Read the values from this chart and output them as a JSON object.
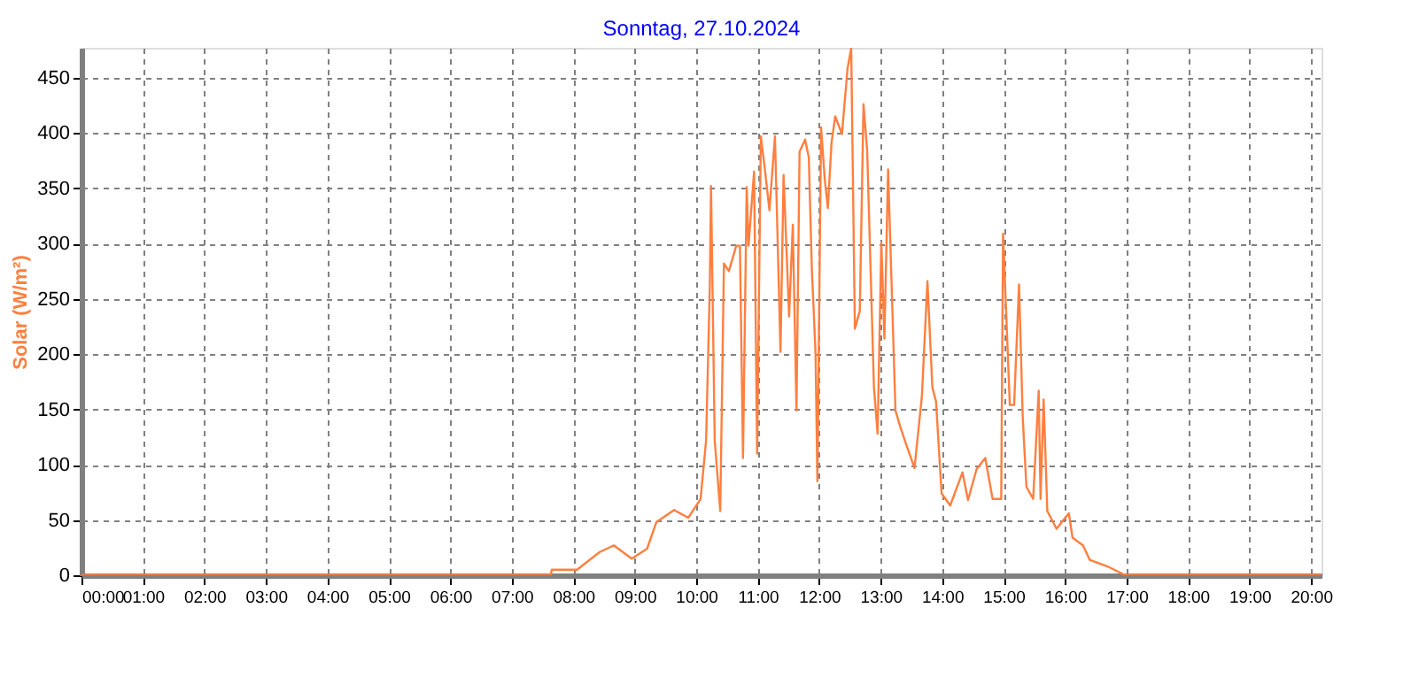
{
  "chart_data": {
    "type": "line",
    "title": "Sonntag, 27.10.2024",
    "ylabel": "Solar (W/m²)",
    "xlim": [
      0,
      20.17
    ],
    "ylim": [
      0,
      477
    ],
    "xticks": [
      {
        "value": 0,
        "label": "00:00"
      },
      {
        "value": 1,
        "label": "01:00"
      },
      {
        "value": 2,
        "label": "02:00"
      },
      {
        "value": 3,
        "label": "03:00"
      },
      {
        "value": 4,
        "label": "04:00"
      },
      {
        "value": 5,
        "label": "05:00"
      },
      {
        "value": 6,
        "label": "06:00"
      },
      {
        "value": 7,
        "label": "07:00"
      },
      {
        "value": 8,
        "label": "08:00"
      },
      {
        "value": 9,
        "label": "09:00"
      },
      {
        "value": 10,
        "label": "10:00"
      },
      {
        "value": 11,
        "label": "11:00"
      },
      {
        "value": 12,
        "label": "12:00"
      },
      {
        "value": 13,
        "label": "13:00"
      },
      {
        "value": 14,
        "label": "14:00"
      },
      {
        "value": 15,
        "label": "15:00"
      },
      {
        "value": 16,
        "label": "16:00"
      },
      {
        "value": 17,
        "label": "17:00"
      },
      {
        "value": 18,
        "label": "18:00"
      },
      {
        "value": 19,
        "label": "19:00"
      },
      {
        "value": 20,
        "label": "20:00"
      }
    ],
    "yticks": [
      0,
      50,
      100,
      150,
      200,
      250,
      300,
      350,
      400,
      450
    ],
    "grid": true,
    "legend": false,
    "marker": "none",
    "line_style": "solid",
    "series": [
      {
        "color": "#ff7f3f",
        "x": [
          0,
          7.63,
          7.65,
          8.06,
          8.43,
          8.66,
          8.95,
          9.2,
          9.35,
          9.64,
          9.87,
          10.07,
          10.16,
          10.22,
          10.24,
          10.3,
          10.39,
          10.45,
          10.53,
          10.65,
          10.71,
          10.76,
          10.82,
          10.85,
          10.94,
          10.99,
          11.05,
          11.11,
          11.19,
          11.28,
          11.37,
          11.42,
          11.51,
          11.57,
          11.63,
          11.68,
          11.77,
          11.83,
          11.88,
          11.94,
          11.97,
          12.03,
          12.09,
          12.14,
          12.2,
          12.26,
          12.37,
          12.46,
          12.52,
          12.58,
          12.66,
          12.72,
          12.78,
          12.89,
          12.95,
          13.01,
          13.06,
          13.12,
          13.24,
          13.32,
          13.41,
          13.55,
          13.67,
          13.76,
          13.84,
          13.9,
          13.99,
          14.13,
          14.33,
          14.42,
          14.56,
          14.7,
          14.82,
          14.96,
          14.99,
          15.1,
          15.17,
          15.25,
          15.31,
          15.37,
          15.48,
          15.57,
          15.6,
          15.65,
          15.71,
          15.86,
          16.06,
          16.12,
          16.29,
          16.4,
          16.69,
          16.98,
          20.17
        ],
        "values": [
          0,
          0,
          5,
          5,
          21,
          27,
          15,
          24,
          48,
          59,
          52,
          69,
          122,
          261,
          352,
          122,
          58,
          282,
          275,
          298,
          298,
          106,
          351,
          298,
          365,
          110,
          397,
          370,
          330,
          397,
          202,
          362,
          234,
          317,
          149,
          383,
          394,
          378,
          277,
          201,
          85,
          405,
          358,
          332,
          391,
          415,
          399,
          458,
          477,
          223,
          239,
          426,
          384,
          170,
          128,
          301,
          214,
          367,
          149,
          134,
          119,
          97,
          162,
          266,
          170,
          157,
          74,
          63,
          93,
          68,
          96,
          106,
          69,
          69,
          309,
          154,
          154,
          263,
          143,
          80,
          69,
          167,
          69,
          159,
          58,
          42,
          56,
          34,
          27,
          14,
          8,
          0,
          0
        ]
      }
    ]
  }
}
